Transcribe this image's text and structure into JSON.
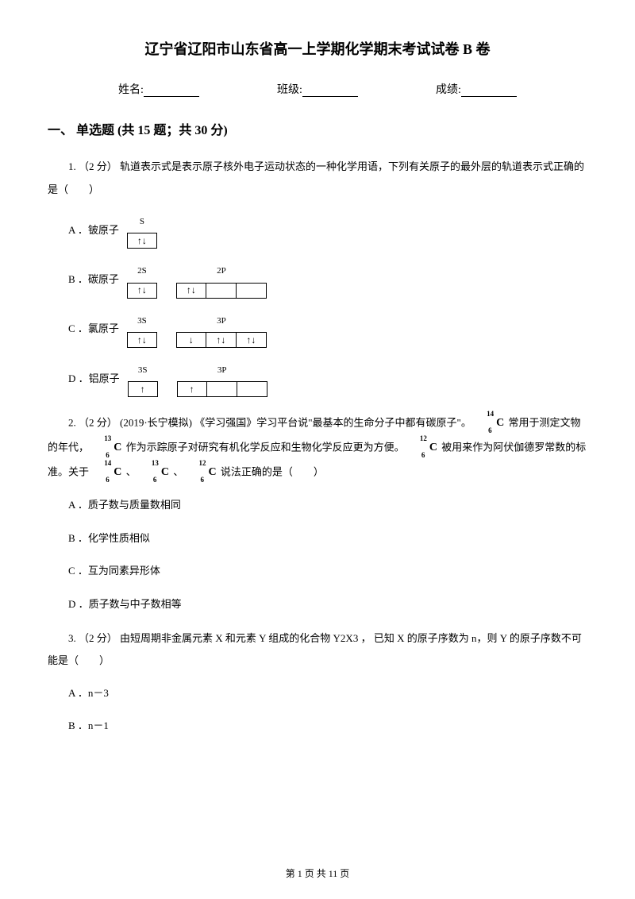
{
  "title": "辽宁省辽阳市山东省高一上学期化学期末考试试卷 B 卷",
  "info": {
    "name_label": "姓名:",
    "class_label": "班级:",
    "score_label": "成绩:"
  },
  "section": {
    "header": "一、 单选题 (共 15 题；共 30 分)"
  },
  "q1": {
    "text": "1.  （2 分） 轨道表示式是表示原子核外电子运动状态的一种化学用语，下列有关原子的最外层的轨道表示式正确的是（　　）",
    "optA_label": "A ．铍原子",
    "optA_orbital1_label": "S",
    "optA_box1": "↑↓",
    "optB_label": "B ．碳原子",
    "optB_orbital1_label": "2S",
    "optB_box1": "↑↓",
    "optB_orbital2_label": "2P",
    "optB_box2": "↑↓",
    "optB_box3": "",
    "optB_box4": "",
    "optC_label": "C ．氯原子",
    "optC_orbital1_label": "3S",
    "optC_box1": "↑↓",
    "optC_orbital2_label": "3P",
    "optC_box2": "↓",
    "optC_box3": "↑↓",
    "optC_box4": "↑↓",
    "optD_label": "D ．铝原子",
    "optD_orbital1_label": "3S",
    "optD_box1": "↑",
    "optD_orbital2_label": "3P",
    "optD_box2": "↑",
    "optD_box3": "",
    "optD_box4": ""
  },
  "q2": {
    "text_p1": "2.  （2 分） (2019·长宁模拟) 《学习强国》学习平台说\"最基本的生命分子中都有碳原子\"。",
    "text_p2": " 常用于测定文物的年代，",
    "text_p3": " 作为示踪原子对研究有机化学反应和生物化学反应更为方便。",
    "text_p4": " 被用来作为阿伏伽德罗常数的标准。关于 ",
    "text_p5": " 、",
    "text_p6": " 、",
    "text_p7": " 说法正确的是（　　）",
    "iso14": {
      "mass": "14",
      "atomic": "6",
      "elem": "C"
    },
    "iso13": {
      "mass": "13",
      "atomic": "6",
      "elem": "C"
    },
    "iso12": {
      "mass": "12",
      "atomic": "6",
      "elem": "C"
    },
    "optA": "A ．质子数与质量数相同",
    "optB": "B ．化学性质相似",
    "optC": "C ．互为同素异形体",
    "optD": "D ．质子数与中子数相等"
  },
  "q3": {
    "text": "3.  （2 分） 由短周期非金属元素 X 和元素 Y 组成的化合物 Y2X3 ， 已知 X 的原子序数为 n，则 Y 的原子序数不可能是（　　）",
    "optA": "A ．n－3",
    "optB": "B ．n－1"
  },
  "footer": "第 1 页 共 11 页"
}
